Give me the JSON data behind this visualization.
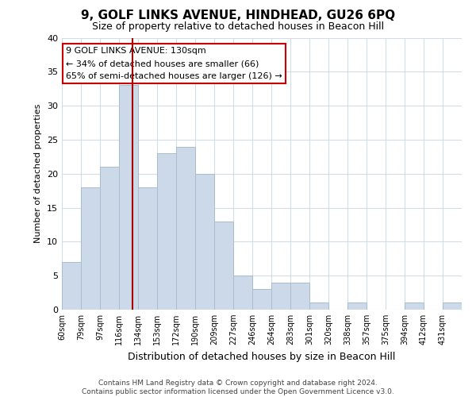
{
  "title": "9, GOLF LINKS AVENUE, HINDHEAD, GU26 6PQ",
  "subtitle": "Size of property relative to detached houses in Beacon Hill",
  "xlabel": "Distribution of detached houses by size in Beacon Hill",
  "ylabel": "Number of detached properties",
  "bin_labels": [
    "60sqm",
    "79sqm",
    "97sqm",
    "116sqm",
    "134sqm",
    "153sqm",
    "172sqm",
    "190sqm",
    "209sqm",
    "227sqm",
    "246sqm",
    "264sqm",
    "283sqm",
    "301sqm",
    "320sqm",
    "338sqm",
    "357sqm",
    "375sqm",
    "394sqm",
    "412sqm",
    "431sqm"
  ],
  "bar_heights": [
    7,
    18,
    21,
    33,
    18,
    23,
    24,
    20,
    13,
    5,
    3,
    4,
    4,
    1,
    0,
    1,
    0,
    0,
    1,
    0,
    1
  ],
  "bar_color": "#ccd9e8",
  "bar_edge_color": "#aabcce",
  "vline_x": 3.72,
  "vline_color": "#aa0000",
  "annotation_title": "9 GOLF LINKS AVENUE: 130sqm",
  "annotation_line1": "← 34% of detached houses are smaller (66)",
  "annotation_line2": "65% of semi-detached houses are larger (126) →",
  "annotation_box_color": "#ffffff",
  "annotation_box_edge": "#cc0000",
  "ylim": [
    0,
    40
  ],
  "yticks": [
    0,
    5,
    10,
    15,
    20,
    25,
    30,
    35,
    40
  ],
  "footer1": "Contains HM Land Registry data © Crown copyright and database right 2024.",
  "footer2": "Contains public sector information licensed under the Open Government Licence v3.0.",
  "bg_color": "#ffffff",
  "grid_color": "#d4dce6"
}
